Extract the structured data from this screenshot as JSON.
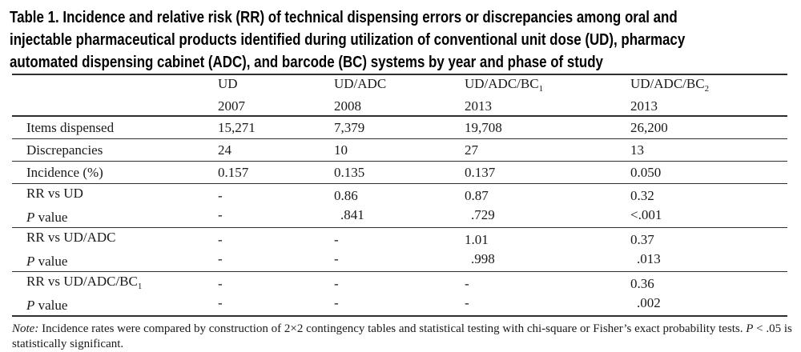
{
  "title": {
    "prefix": "Table 1.",
    "line1": " Incidence and relative risk (RR) of technical dispensing errors or discrepancies among oral and",
    "line2": "injectable pharmaceutical products identified during utilization of conventional unit dose (UD), pharmacy",
    "line3": "automated dispensing cabinet (ADC), and barcode (BC) systems by year and phase of study"
  },
  "table": {
    "columns": [
      {
        "name": "UD",
        "sub": "",
        "year": "2007"
      },
      {
        "name": "UD/ADC",
        "sub": "",
        "year": "2008"
      },
      {
        "name": "UD/ADC/BC",
        "sub": "1",
        "year": "2013"
      },
      {
        "name": "UD/ADC/BC",
        "sub": "2",
        "year": "2013"
      }
    ],
    "rows": [
      {
        "label": "Items dispensed",
        "values": [
          "15,271",
          "7,379",
          "19,708",
          "26,200"
        ]
      },
      {
        "label": "Discrepancies",
        "values": [
          "24",
          "10",
          "27",
          "13"
        ]
      },
      {
        "label": "Incidence (%)",
        "values": [
          "0.157",
          "0.135",
          "0.137",
          "0.050"
        ]
      }
    ],
    "rr_groups": [
      {
        "label": "RR vs UD",
        "sub": "",
        "p_label": "P",
        "p_label_rest": " value",
        "rr": [
          "-",
          "0.86",
          "0.87",
          "0.32"
        ],
        "p": [
          "-",
          ".841",
          ".729",
          "<.001"
        ]
      },
      {
        "label": "RR vs UD/ADC",
        "sub": "",
        "p_label": "P",
        "p_label_rest": " value",
        "rr": [
          "-",
          "-",
          "1.01",
          "0.37"
        ],
        "p": [
          "-",
          "-",
          ".998",
          ".013"
        ]
      },
      {
        "label": "RR vs UD/ADC/BC",
        "sub": "1",
        "p_label": "P",
        "p_label_rest": " value",
        "rr": [
          "-",
          "-",
          "-",
          "0.36"
        ],
        "p": [
          "-",
          "-",
          "-",
          ".002"
        ]
      }
    ]
  },
  "note": {
    "label": "Note:",
    "body": " Incidence rates were compared by construction of 2×2 contingency tables and statistical testing with chi-square or Fisher’s exact probability tests. ",
    "p": "P",
    "tail": " < .05 is",
    "line2": "statistically significant."
  }
}
